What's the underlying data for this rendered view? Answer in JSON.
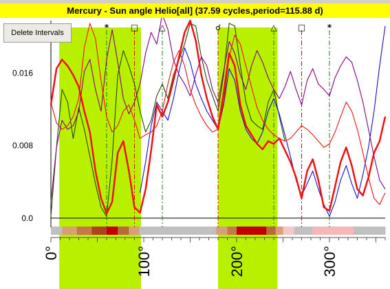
{
  "window": {
    "title": "Mercury - Sun angle Helio[all]  (37.59 cycles,period=115.88 d)"
  },
  "toolbar": {
    "delete_intervals_label": "Delete Intervals"
  },
  "colors": {
    "title_bg": "#ffff00",
    "highlight": "#b8f000",
    "series_red": "#ee1111",
    "series_darkgreen": "#1e4a00",
    "series_blue": "#1010cc",
    "series_purple": "#800080",
    "band_dark": "#c00000",
    "band_mid": "#b4522c",
    "band_pink": "#f4b8b8",
    "band_gray": "#c0c0c0"
  },
  "chart_data": {
    "type": "line",
    "title": "Mercury - Sun angle Helio[all]  (37.59 cycles,period=115.88 d)",
    "xlim": [
      0,
      360
    ],
    "ylim": [
      -0.001,
      0.0218
    ],
    "xticks": [
      0,
      100,
      200,
      300
    ],
    "xtick_labels": [
      "0°",
      "100°",
      "200°",
      "300°"
    ],
    "yticks": [
      0.0,
      0.008,
      0.016
    ],
    "ytick_labels": [
      "0.0",
      "0.008",
      "0.016"
    ],
    "highlight_intervals": [
      [
        9,
        97
      ],
      [
        180,
        244
      ]
    ],
    "aspect_markers": [
      {
        "symbol": "*",
        "x": 60,
        "color": "#1e7a1e",
        "style": "dashdot"
      },
      {
        "symbol": "□",
        "x": 90,
        "color": "#dd0000",
        "style": "dashdot"
      },
      {
        "symbol": "△",
        "x": 120,
        "color": "#1e7a1e",
        "style": "dashdot"
      },
      {
        "symbol": "☌",
        "x": 180,
        "color": "#dd0000",
        "style": "dashdot"
      },
      {
        "symbol": "△",
        "x": 240,
        "color": "#1e7a1e",
        "style": "dashdot"
      },
      {
        "symbol": "□",
        "x": 270,
        "color": "#dd0000",
        "style": "dashdot"
      },
      {
        "symbol": "*",
        "x": 300,
        "color": "#1e7a1e",
        "style": "dashdot"
      }
    ],
    "band": [
      {
        "x0": 0,
        "x1": 12,
        "color": "#c0c0c0"
      },
      {
        "x0": 12,
        "x1": 28,
        "color": "#d7a070"
      },
      {
        "x0": 28,
        "x1": 44,
        "color": "#c87848"
      },
      {
        "x0": 44,
        "x1": 60,
        "color": "#b04020"
      },
      {
        "x0": 60,
        "x1": 72,
        "color": "#c00000"
      },
      {
        "x0": 72,
        "x1": 84,
        "color": "#b86a3c"
      },
      {
        "x0": 84,
        "x1": 95,
        "color": "#d8a078"
      },
      {
        "x0": 95,
        "x1": 178,
        "color": "#c0c0c0"
      },
      {
        "x0": 178,
        "x1": 190,
        "color": "#d8a078"
      },
      {
        "x0": 190,
        "x1": 200,
        "color": "#c87848"
      },
      {
        "x0": 200,
        "x1": 232,
        "color": "#c00000"
      },
      {
        "x0": 232,
        "x1": 242,
        "color": "#b86a3c"
      },
      {
        "x0": 242,
        "x1": 250,
        "color": "#d8a078"
      },
      {
        "x0": 250,
        "x1": 262,
        "color": "#f4c8c8"
      },
      {
        "x0": 262,
        "x1": 282,
        "color": "#c0c0c0"
      },
      {
        "x0": 282,
        "x1": 326,
        "color": "#f4b8b8"
      },
      {
        "x0": 326,
        "x1": 360,
        "color": "#c0c0c0"
      }
    ],
    "series": [
      {
        "color": "#ee1111",
        "width": 2.5,
        "x": [
          0,
          6,
          12,
          18,
          24,
          30,
          36,
          42,
          48,
          54,
          60,
          66,
          72,
          78,
          84,
          90,
          96,
          102,
          108,
          114,
          120,
          126,
          132,
          138,
          144,
          150,
          156,
          162,
          168,
          174,
          180,
          186,
          192,
          198,
          204,
          210,
          216,
          222,
          228,
          234,
          240,
          246,
          252,
          258,
          264,
          270,
          276,
          282,
          288,
          294,
          300,
          306,
          312,
          318,
          324,
          330,
          336,
          342,
          348,
          354,
          360
        ],
        "y": [
          0.0125,
          0.0165,
          0.0175,
          0.0168,
          0.0158,
          0.0145,
          0.0118,
          0.0095,
          0.0052,
          0.0022,
          0.0005,
          0.0018,
          0.0072,
          0.0085,
          0.0052,
          0.0012,
          0.0006,
          0.0032,
          0.0075,
          0.0125,
          0.0112,
          0.0128,
          0.0152,
          0.0178,
          0.0205,
          0.0218,
          0.0196,
          0.0158,
          0.0132,
          0.0112,
          0.0098,
          0.0138,
          0.0182,
          0.0168,
          0.0125,
          0.0102,
          0.0092,
          0.0082,
          0.0076,
          0.0085,
          0.0082,
          0.0088,
          0.0075,
          0.0062,
          0.0045,
          0.0022,
          0.0052,
          0.0065,
          0.0042,
          0.0012,
          0.0008,
          0.0035,
          0.0062,
          0.0078,
          0.0058,
          0.0032,
          0.0025,
          0.0045,
          0.0072,
          0.0085,
          0.0112
        ]
      },
      {
        "color": "#1e4a00",
        "width": 1.1,
        "x": [
          0,
          6,
          12,
          18,
          24,
          30,
          36,
          42,
          48,
          54,
          60,
          66,
          72,
          78,
          84,
          90,
          96,
          102,
          108,
          114,
          120,
          126,
          132,
          138,
          144,
          150,
          156,
          162,
          168,
          174,
          180,
          186,
          192,
          198,
          204,
          210,
          216,
          222,
          228,
          234,
          240,
          246,
          252
        ],
        "y": [
          0.0002,
          0.0078,
          0.0142,
          0.0128,
          0.0088,
          0.0122,
          0.0098,
          0.0068,
          0.0038,
          0.0012,
          0.0002,
          0.0065,
          0.0158,
          0.0185,
          0.0168,
          0.0148,
          0.0118,
          0.0095,
          0.0108,
          0.0135,
          0.0148,
          0.0132,
          0.0158,
          0.0175,
          0.0192,
          0.0215,
          0.0212,
          0.0178,
          0.0152,
          0.0135,
          0.0118,
          0.0158,
          0.0215,
          0.0212,
          0.0168,
          0.0128,
          0.0108,
          0.0102,
          0.0098,
          0.0128,
          0.0142,
          0.0112,
          0.0085
        ]
      },
      {
        "color": "#1010cc",
        "width": 1.1,
        "x": [
          96,
          102,
          108,
          114,
          120,
          126,
          132,
          138,
          144,
          150,
          156,
          162,
          168,
          174,
          180,
          186,
          192,
          198,
          204,
          210,
          216,
          222,
          228,
          234,
          240,
          246,
          252,
          258,
          264,
          270,
          276,
          282,
          288,
          294,
          300,
          306,
          312,
          318,
          324,
          330,
          336,
          342,
          348,
          354,
          360
        ],
        "y": [
          0.0028,
          0.0062,
          0.0102,
          0.0128,
          0.0118,
          0.0108,
          0.0132,
          0.0162,
          0.0188,
          0.0172,
          0.0148,
          0.0132,
          0.0118,
          0.0108,
          0.0098,
          0.0125,
          0.0165,
          0.0152,
          0.0118,
          0.0098,
          0.0088,
          0.0082,
          0.0095,
          0.0118,
          0.0132,
          0.0115,
          0.0092,
          0.0068,
          0.0042,
          0.0025,
          0.0038,
          0.0052,
          0.0032,
          0.0015,
          0.0002,
          0.0018,
          0.0042,
          0.0058,
          0.0038,
          0.0022,
          0.0048,
          0.0078,
          0.0118,
          0.0168,
          0.0212
        ]
      },
      {
        "color": "#800080",
        "width": 1.1,
        "x": [
          0,
          6,
          12,
          18,
          24,
          30,
          36,
          42,
          48,
          54,
          60,
          66,
          72,
          78,
          84,
          90,
          96,
          102,
          108,
          114,
          120,
          126,
          132,
          138,
          144,
          150,
          156,
          162,
          168,
          174,
          180,
          186,
          192,
          198,
          204,
          210,
          216,
          222,
          228,
          234,
          240,
          246,
          252,
          258,
          264,
          270,
          276,
          282,
          288,
          294,
          300,
          306,
          312,
          318,
          324,
          330,
          336,
          342,
          348,
          354,
          360
        ],
        "y": [
          0.0018,
          0.0078,
          0.0108,
          0.0098,
          0.0102,
          0.0118,
          0.0162,
          0.0175,
          0.0142,
          0.0118,
          0.0175,
          0.0208,
          0.0172,
          0.0132,
          0.0115,
          0.0128,
          0.0148,
          0.0182,
          0.0205,
          0.0192,
          0.0225,
          0.0208,
          0.0175,
          0.0158,
          0.0148,
          0.0135,
          0.0158,
          0.0178,
          0.0168,
          0.0142,
          0.0128,
          0.0162,
          0.0195,
          0.0182,
          0.0158,
          0.0142,
          0.0168,
          0.0185,
          0.0172,
          0.0155,
          0.0142,
          0.0132,
          0.0145,
          0.0162,
          0.0142,
          0.0125,
          0.0152,
          0.0165,
          0.0148,
          0.0142,
          0.0135,
          0.0155,
          0.0168,
          0.0178,
          0.0172,
          0.0152,
          0.0128,
          0.0098,
          0.0068,
          0.0042,
          0.0032
        ]
      },
      {
        "color": "#ee1111",
        "width": 1.1,
        "x": [
          0,
          6,
          12,
          18,
          24,
          30,
          36,
          42,
          48,
          54,
          60,
          66,
          72,
          78,
          84,
          90,
          96,
          102,
          108,
          114,
          120,
          126,
          132,
          138,
          144,
          150,
          156,
          162,
          168,
          174,
          180,
          186,
          192,
          198,
          204,
          210,
          216,
          222,
          228,
          234,
          240,
          246,
          252,
          258,
          264,
          270,
          276,
          282,
          288,
          294,
          300,
          306,
          312,
          318,
          324,
          330,
          336,
          342,
          348,
          354,
          360
        ],
        "y": [
          0.0128,
          0.0105,
          0.0098,
          0.0102,
          0.0112,
          0.0132,
          0.0188,
          0.0215,
          0.0198,
          0.0152,
          0.0112,
          0.0095,
          0.0102,
          0.0118,
          0.0125,
          0.0108,
          0.0088,
          0.0092,
          0.0095,
          0.0102,
          0.0118,
          0.0148,
          0.0172,
          0.0185,
          0.0168,
          0.0142,
          0.0125,
          0.0112,
          0.0102,
          0.0095,
          0.0098,
          0.0128,
          0.0178,
          0.0202,
          0.0192,
          0.0168,
          0.0145,
          0.0122,
          0.0108,
          0.0098,
          0.0092,
          0.0088,
          0.0085,
          0.0088,
          0.0095,
          0.0102,
          0.0098,
          0.0092,
          0.0085,
          0.0078,
          0.0082,
          0.0095,
          0.0112,
          0.0128,
          0.0118,
          0.0098,
          0.0072,
          0.0045,
          0.0022,
          0.0015,
          0.0028
        ]
      }
    ]
  }
}
